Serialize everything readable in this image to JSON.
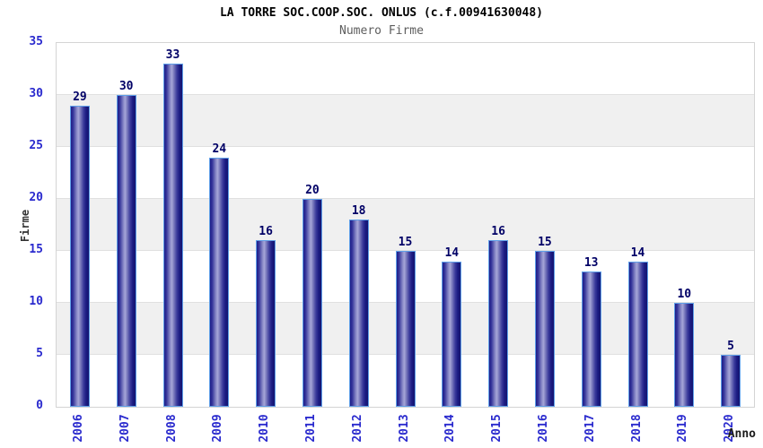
{
  "header": {
    "title": "LA TORRE SOC.COOP.SOC. ONLUS (c.f.00941630048)",
    "subtitle": "Numero Firme"
  },
  "chart_data": {
    "type": "bar",
    "title": "LA TORRE SOC.COOP.SOC. ONLUS (c.f.00941630048)",
    "subtitle": "Numero Firme",
    "categories": [
      "2006",
      "2007",
      "2008",
      "2009",
      "2010",
      "2011",
      "2012",
      "2013",
      "2014",
      "2015",
      "2016",
      "2017",
      "2018",
      "2019",
      "2020"
    ],
    "values": [
      29,
      30,
      33,
      24,
      16,
      20,
      18,
      15,
      14,
      16,
      15,
      13,
      14,
      10,
      5
    ],
    "xlabel": "Anno",
    "ylabel": "Firme",
    "ylim": [
      0,
      35
    ],
    "yticks": [
      0,
      5,
      10,
      15,
      20,
      25,
      30,
      35
    ],
    "grid": "horizontal-alternating-bands",
    "legend": "none",
    "colors": {
      "bar_dark": "#1b1b82",
      "bar_highlight": "#a6a6d8",
      "bar_border": "#5f9fe8",
      "tick_label": "#2a2ace",
      "value_label": "#000066",
      "band_gray": "#f0f0f0",
      "band_white": "#ffffff",
      "plot_border": "#d4d4d4",
      "title_color": "#000000",
      "subtitle_color": "#5e5e5e"
    }
  }
}
